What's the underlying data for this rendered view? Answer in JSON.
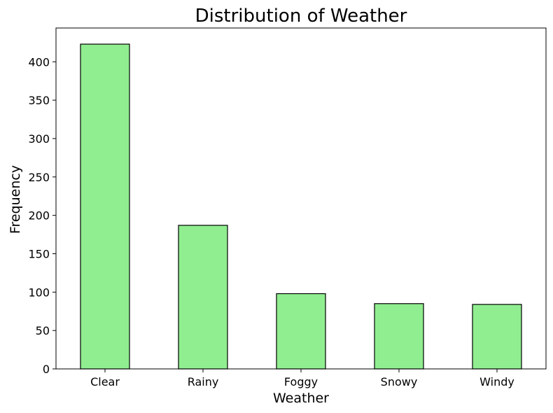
{
  "chart_data": {
    "type": "bar",
    "title": "Distribution of Weather",
    "xlabel": "Weather",
    "ylabel": "Frequency",
    "categories": [
      "Clear",
      "Rainy",
      "Foggy",
      "Snowy",
      "Windy"
    ],
    "values": [
      423,
      187,
      98,
      85,
      84
    ],
    "ylim": [
      0,
      444
    ],
    "yticks": [
      0,
      50,
      100,
      150,
      200,
      250,
      300,
      350,
      400
    ],
    "bar_color": "#90ee90",
    "bar_edge_color": "#000000",
    "grid": false,
    "legend": "none"
  }
}
